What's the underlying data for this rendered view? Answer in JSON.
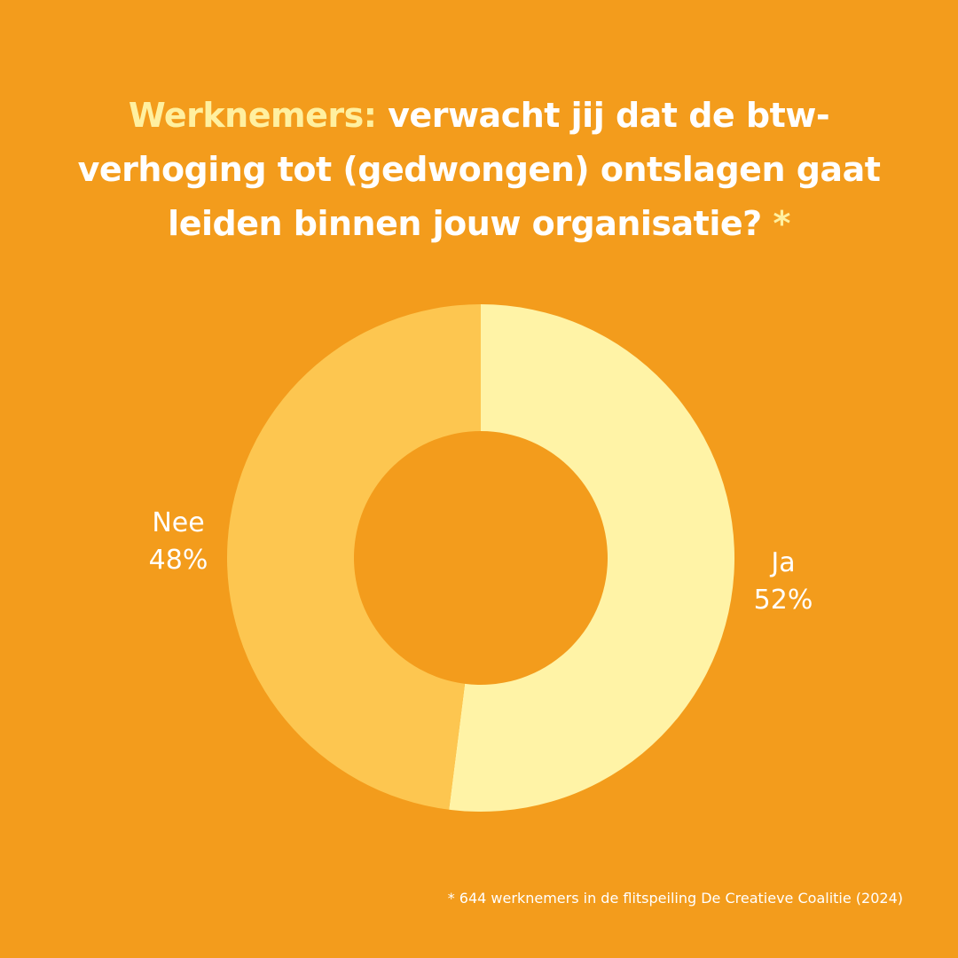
{
  "title": {
    "highlight": "Werknemers:",
    "text": "verwacht jij dat de btw-verhoging tot (gedwongen) ontslagen gaat leiden binnen jouw organisatie?",
    "marker": "*"
  },
  "footnote": "* 644 werknemers in de flitspeiling De Creatieve Coalitie (2024)",
  "colors": {
    "background": "#F39C1C",
    "title_highlight": "#FFF0A0",
    "ja": "#FFF3A6",
    "nee": "#FDC650"
  },
  "chart_data": {
    "type": "pie",
    "variant": "donut",
    "title": "",
    "slices": [
      {
        "label": "Ja",
        "value": 52,
        "display": "52%",
        "color": "#FFF3A6"
      },
      {
        "label": "Nee",
        "value": 48,
        "display": "48%",
        "color": "#FDC650"
      }
    ],
    "start": "top",
    "direction": "clockwise",
    "legend": "none"
  }
}
